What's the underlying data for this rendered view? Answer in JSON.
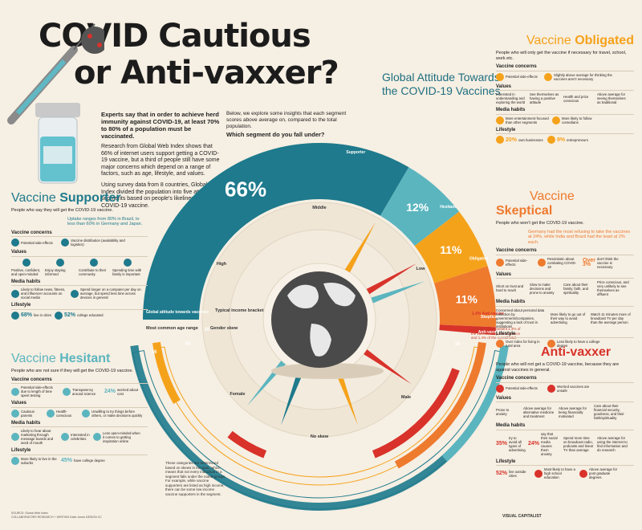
{
  "header": {
    "title_line1": "COVID Cautious",
    "title_line2": "or Anti-vaxxer?",
    "subtitle_line1": "Global Attitude Towards",
    "subtitle_line2": "the COVID-19 Vaccines"
  },
  "intro": {
    "lead": "Experts say that in order to achieve herd immunity against COVID-19, at least 70% to 80% of a population must be vaccinated.",
    "p2": "Research from Global Web Index shows that 66% of internet users support getting a COVID-19 vaccine, but a third of people still have some major concerns which depend on a range of factors, such as age, lifestyle, and values.",
    "p3": "Using survey data from 8 countries, Global Web Index divided the population into five attitude segments based on people's likeliness to get a COVID-19 vaccine."
  },
  "below_intro": {
    "text": "Below, we explore some insights that each segment scores above average on, compared to the total population.",
    "question": "Which segment do you fall under?"
  },
  "chart_data": {
    "type": "pie",
    "title": "",
    "categories": [
      "Supporter",
      "Hesitant",
      "Obligated",
      "Skeptical",
      "Anti-vaxxer"
    ],
    "values": [
      66,
      12,
      11,
      11,
      1.4
    ],
    "value_labels": [
      "66%",
      "12%",
      "11%",
      "11%",
      "1.4%"
    ],
    "colors": [
      "#1e7a8c",
      "#5bb5bf",
      "#f5a21b",
      "#ee7a2e",
      "#d8322a"
    ],
    "outer_label": "Global attitude towards vaccines",
    "axis_labels": {
      "top": "Middle",
      "left": "High",
      "right": "Low",
      "bottom_left": "Female",
      "bottom_right": "Male",
      "bottom": "No skew",
      "typical_income": "Typical income bracket",
      "gender_skew": "Gender skew",
      "age_range": "Most common age range"
    },
    "age_ranges": [
      "16",
      "55",
      "35",
      "16"
    ],
    "anti_vaxxer_note": "Anti-vaxxers represent 1.4% of the vaccine skeptical audience and 1.4% of the overall total"
  },
  "panels": {
    "supporter": {
      "heading_pre": "Vaccine ",
      "heading_bold": "Supporter",
      "desc": "People who say they will get the COVID-19 vaccine.",
      "note": "Uptake ranges from 80% in Brazil, to less than 60% in Germany and Japan.",
      "concerns_label": "Vaccine concerns",
      "concerns": [
        "Potential side-effects",
        "Vaccine distribution (availability and logistics)"
      ],
      "values_label": "Values",
      "values": [
        "Positive, confident, and open-minded",
        "Enjoy staying informed",
        "Contribute to their community",
        "Spending time with family is important"
      ],
      "media_label": "Media habits",
      "media": [
        "Likely to follow news, fitness, and influencer accounts on social media",
        "Spend longer on a computer per day on average, but spend less time across devices in general"
      ],
      "lifestyle_label": "Lifestyle",
      "lifestyle": [
        {
          "pct": "68%",
          "text": "live in cities"
        },
        {
          "pct": "52%",
          "text": "college educated"
        }
      ]
    },
    "hesitant": {
      "heading_pre": "Vaccine ",
      "heading_bold": "Hesitant",
      "desc": "People who are not sure if they will get the COVID-19 vaccine.",
      "concerns_label": "Vaccine concerns",
      "concerns": [
        "Potential side-effects due to length of time spent testing",
        "Transparency around science"
      ],
      "concern_pct": "24%",
      "concern_pct_text": "worried about cost",
      "values_label": "Values",
      "values": [
        "Cautious parents",
        "Health-conscious",
        "Unwilling to try things before others, or make decisions quickly"
      ],
      "media_label": "Media habits",
      "media": [
        "Likely to hear about marketing through message boards and word of mouth",
        "Interested in celebrities",
        "Less open-minded when it comes to getting inspiration online"
      ],
      "lifestyle_label": "Lifestyle",
      "lifestyle": [
        {
          "pct": "",
          "text": "More likely to live in the suburbs"
        },
        {
          "pct": "45%",
          "text": "have college degree"
        }
      ]
    },
    "obligated": {
      "heading_pre": "Vaccine ",
      "heading_bold": "Obligated",
      "desc": "People who will only get the vaccine if necessary for travel, school, work etc.",
      "concerns_label": "Vaccine concerns",
      "concerns": [
        "Potential side-effects",
        "Slightly above average for thinking the vaccines aren't necessary"
      ],
      "values_label": "Values",
      "values": [
        "Interested in understanding and exploring the world",
        "See themselves as having a positive attitude",
        "Health and price conscious",
        "Above average for seeing themselves as traditional"
      ],
      "media_label": "Media habits",
      "media": [
        "More entertainment-focused than other segments",
        "More likely to follow comedians"
      ],
      "lifestyle_label": "Lifestyle",
      "lifestyle": [
        {
          "pct": "20%",
          "text": "own businesses"
        },
        {
          "pct": "9%",
          "text": "entrepreneurs"
        }
      ]
    },
    "skeptical": {
      "heading_pre": "Vaccine ",
      "heading_bold": "Skeptical",
      "desc": "People who won't get the COVID-19 vaccine.",
      "note": "Germany had the most refusing to take the vaccines at 24%, while India and Brazil had the least at 2% each.",
      "concerns_label": "Vaccine concerns",
      "concerns": [
        "Potential side-effects",
        "Pessimistic about combating COVID-19"
      ],
      "concern_pct": "Over 3%",
      "concern_pct_text": "don't think the vaccine is necessary",
      "values_label": "Values",
      "values": [
        "Short on trust and hard to reach",
        "Slow to make decisions and prone to anxiety",
        "Care about their family, faith, and spirituality",
        "Price conscious, and very unlikely to see themselves as affluent"
      ],
      "media_label": "Media habits",
      "media": [
        "Concerned about personal data collection by governments/companies, suggesting a lack of trust in institutions",
        "More likely to go out of their way to avoid advertising",
        "Watch 11 minutes more of broadcast TV per day than the average person"
      ],
      "lifestyle_label": "Lifestyle",
      "lifestyle": [
        {
          "pct": "",
          "text": "Over index for living in rural area"
        },
        {
          "pct": "",
          "text": "Less likely to have a college degree"
        }
      ]
    },
    "antivaxxer": {
      "heading": "Anti-vaxxer",
      "desc": "People who will not get a COVID-19 vaccine, because they are against vaccines in general.",
      "concerns_label": "Vaccine concerns",
      "concerns": [
        "Potential side-effects",
        "Worried vaccines are unsafe"
      ],
      "values_label": "Values",
      "values": [
        "Prone to anxiety",
        "Above average for alternative medicine and treatment",
        "Above average for being financially motivated",
        "Care about their financial security, goodness, and their faith/spirituality"
      ],
      "media_label": "Media habits",
      "media": [
        {
          "pct": "35%",
          "text": "try to avoid all types of advertising"
        },
        {
          "pct": "24%",
          "text": "say that their social media causes them anxiety"
        },
        {
          "pct": "",
          "text": "Spend more time on broadcast radio, podcasts and linear TV than average"
        },
        {
          "pct": "",
          "text": "Above average for using the internet to find information and do research"
        }
      ],
      "lifestyle_label": "Lifestyle",
      "lifestyle": [
        {
          "pct": "52%",
          "text": "live outside cities"
        },
        {
          "pct": "",
          "text": "Most likely to have a high school education"
        },
        {
          "pct": "",
          "text": "Above average for post graduate degrees"
        }
      ]
    }
  },
  "notes": {
    "skew": "These categories are determined based on skews in the data, which means that not every individual in a segment falls under the noted groups. For example, while vaccine supporters are listed as high income, there can be some low income vaccine supporters in the segment."
  },
  "footer": {
    "source": "SOURCE: Global Web Index",
    "credits": "COLLABORATORS RESEARCH + WRITING Katie Jones DESIGN VC",
    "brand": "VISUAL CAPITALIST"
  }
}
